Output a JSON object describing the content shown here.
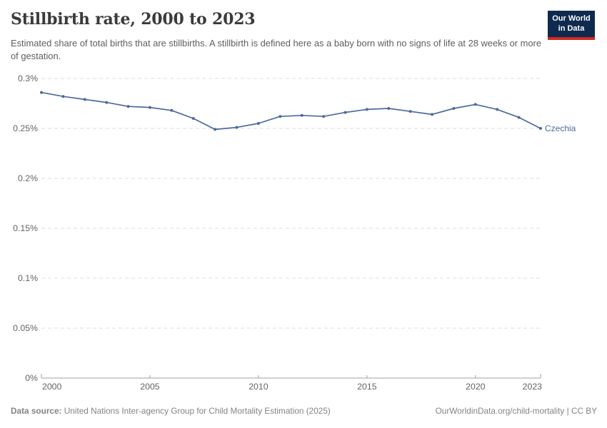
{
  "header": {
    "title": "Stillbirth rate, 2000 to 2023",
    "subtitle": "Estimated share of total births that are stillbirths. A stillbirth is defined here as a baby born with no signs of life at 28 weeks or more of gestation.",
    "logo": {
      "line1": "Our World",
      "line2": "in Data"
    }
  },
  "chart_data": {
    "type": "line",
    "title": "Stillbirth rate, 2000 to 2023",
    "xlabel": "",
    "ylabel": "",
    "unit": "%",
    "ylim": [
      0,
      0.3
    ],
    "grid": "horizontal-dashed",
    "legend_position": "end-of-line",
    "x": [
      2000,
      2001,
      2002,
      2003,
      2004,
      2005,
      2006,
      2007,
      2008,
      2009,
      2010,
      2011,
      2012,
      2013,
      2014,
      2015,
      2016,
      2017,
      2018,
      2019,
      2020,
      2021,
      2022,
      2023
    ],
    "series": [
      {
        "name": "Czechia",
        "color": "#4c6a9c",
        "values": [
          0.286,
          0.282,
          0.279,
          0.276,
          0.272,
          0.271,
          0.268,
          0.26,
          0.249,
          0.251,
          0.255,
          0.262,
          0.263,
          0.262,
          0.266,
          0.269,
          0.27,
          0.267,
          0.264,
          0.27,
          0.274,
          0.269,
          0.261,
          0.25
        ]
      }
    ],
    "y_ticks": [
      {
        "value": 0,
        "label": "0%"
      },
      {
        "value": 0.05,
        "label": "0.05%"
      },
      {
        "value": 0.1,
        "label": "0.1%"
      },
      {
        "value": 0.15,
        "label": "0.15%"
      },
      {
        "value": 0.2,
        "label": "0.2%"
      },
      {
        "value": 0.25,
        "label": "0.25%"
      },
      {
        "value": 0.3,
        "label": "0.3%"
      }
    ],
    "x_ticks": [
      2000,
      2005,
      2010,
      2015,
      2020,
      2023
    ]
  },
  "footer": {
    "source_label": "Data source:",
    "source_text": " United Nations Inter-agency Group for Child Mortality Estimation (2025)",
    "rights": "OurWorldinData.org/child-mortality | CC BY"
  },
  "colors": {
    "line": "#4c6a9c",
    "gridline": "#dcdcdc",
    "axis": "#a2a2a2",
    "logo_bg": "#0f2a4e",
    "logo_stripe": "#cf2a22"
  }
}
